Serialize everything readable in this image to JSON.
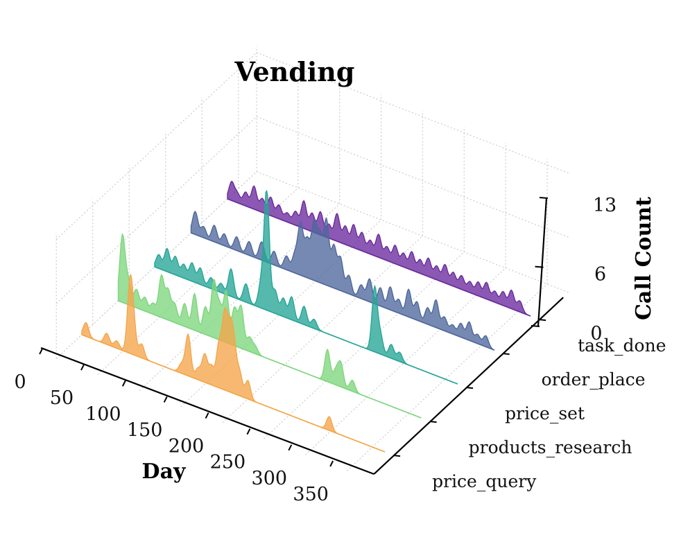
{
  "chart_data": {
    "type": "area",
    "title": "Vending",
    "xlabel": "Day",
    "ylabel": "",
    "zlabel": "Call Count",
    "xlim": [
      0,
      365
    ],
    "zlim": [
      0,
      13
    ],
    "x_ticks": [
      "0",
      "50",
      "100",
      "150",
      "200",
      "250",
      "300",
      "350"
    ],
    "z_ticks": [
      "0",
      "6",
      "13"
    ],
    "categories": [
      "price_query",
      "products_research",
      "price_set",
      "order_place",
      "task_done"
    ],
    "colors": {
      "price_query": "#f5a54a",
      "products_research": "#7ed67e",
      "price_set": "#27a597",
      "order_place": "#4e689c",
      "task_done": "#6a2a9d"
    },
    "series": [
      {
        "name": "price_query",
        "peaks": [
          [
            5,
            1.5
          ],
          [
            30,
            1.2
          ],
          [
            42,
            0.8
          ],
          [
            58,
            7.0
          ],
          [
            62,
            3.0
          ],
          [
            72,
            1.5
          ],
          [
            120,
            1.0
          ],
          [
            128,
            4.5
          ],
          [
            140,
            1.2
          ],
          [
            148,
            3.0
          ],
          [
            156,
            2.0
          ],
          [
            165,
            4.5
          ],
          [
            172,
            7.5
          ],
          [
            178,
            5.5
          ],
          [
            183,
            5.0
          ],
          [
            190,
            2.5
          ],
          [
            200,
            2.0
          ],
          [
            298,
            1.5
          ]
        ]
      },
      {
        "name": "products_research",
        "peaks": [
          [
            5,
            7.2
          ],
          [
            12,
            2.5
          ],
          [
            22,
            2.0
          ],
          [
            32,
            1.5
          ],
          [
            42,
            1.2
          ],
          [
            52,
            4.5
          ],
          [
            60,
            3.2
          ],
          [
            68,
            2.0
          ],
          [
            80,
            2.5
          ],
          [
            92,
            4.0
          ],
          [
            105,
            3.0
          ],
          [
            115,
            6.0
          ],
          [
            122,
            3.5
          ],
          [
            130,
            5.5
          ],
          [
            140,
            4.0
          ],
          [
            148,
            4.5
          ],
          [
            158,
            1.5
          ],
          [
            165,
            0.8
          ],
          [
            252,
            3.5
          ],
          [
            262,
            1.5
          ],
          [
            268,
            2.5
          ],
          [
            282,
            1.2
          ]
        ]
      },
      {
        "name": "price_set",
        "peaks": [
          [
            5,
            1.5
          ],
          [
            15,
            2.5
          ],
          [
            25,
            2.0
          ],
          [
            35,
            1.5
          ],
          [
            45,
            2.0
          ],
          [
            55,
            1.8
          ],
          [
            68,
            1.2
          ],
          [
            80,
            1.0
          ],
          [
            92,
            3.0
          ],
          [
            110,
            2.0
          ],
          [
            128,
            2.5
          ],
          [
            135,
            13.0
          ],
          [
            145,
            2.5
          ],
          [
            155,
            2.0
          ],
          [
            165,
            2.5
          ],
          [
            180,
            2.0
          ],
          [
            192,
            1.0
          ],
          [
            265,
            7.0
          ],
          [
            272,
            2.0
          ],
          [
            285,
            1.5
          ],
          [
            295,
            1.0
          ]
        ]
      },
      {
        "name": "order_place",
        "peaks": [
          [
            5,
            2.5
          ],
          [
            15,
            1.2
          ],
          [
            28,
            1.8
          ],
          [
            40,
            1.3
          ],
          [
            55,
            1.5
          ],
          [
            70,
            1.5
          ],
          [
            85,
            2.0
          ],
          [
            100,
            1.5
          ],
          [
            115,
            1.5
          ],
          [
            125,
            2.0
          ],
          [
            132,
            5.5
          ],
          [
            140,
            4.0
          ],
          [
            148,
            6.0
          ],
          [
            155,
            5.0
          ],
          [
            163,
            7.0
          ],
          [
            172,
            4.5
          ],
          [
            180,
            3.5
          ],
          [
            190,
            2.0
          ],
          [
            205,
            1.5
          ],
          [
            215,
            2.5
          ],
          [
            228,
            2.0
          ],
          [
            240,
            2.5
          ],
          [
            250,
            1.5
          ],
          [
            262,
            3.0
          ],
          [
            272,
            2.0
          ],
          [
            285,
            1.8
          ],
          [
            295,
            3.0
          ],
          [
            305,
            1.5
          ],
          [
            315,
            1.0
          ],
          [
            325,
            1.5
          ],
          [
            335,
            2.0
          ],
          [
            345,
            1.0
          ],
          [
            355,
            1.2
          ]
        ]
      },
      {
        "name": "task_done",
        "peaks": [
          [
            5,
            2.0
          ],
          [
            12,
            1.0
          ],
          [
            22,
            1.5
          ],
          [
            32,
            2.5
          ],
          [
            42,
            1.5
          ],
          [
            52,
            2.0
          ],
          [
            62,
            1.5
          ],
          [
            72,
            1.0
          ],
          [
            82,
            1.5
          ],
          [
            92,
            3.0
          ],
          [
            102,
            2.0
          ],
          [
            112,
            2.5
          ],
          [
            122,
            1.5
          ],
          [
            132,
            3.0
          ],
          [
            142,
            2.0
          ],
          [
            152,
            2.5
          ],
          [
            162,
            2.0
          ],
          [
            172,
            1.5
          ],
          [
            182,
            2.5
          ],
          [
            192,
            1.5
          ],
          [
            202,
            2.0
          ],
          [
            212,
            1.5
          ],
          [
            222,
            2.0
          ],
          [
            232,
            1.5
          ],
          [
            242,
            2.0
          ],
          [
            252,
            1.5
          ],
          [
            262,
            2.0
          ],
          [
            272,
            1.5
          ],
          [
            282,
            1.5
          ],
          [
            292,
            1.2
          ],
          [
            302,
            1.5
          ],
          [
            312,
            1.8
          ],
          [
            322,
            1.2
          ],
          [
            332,
            1.5
          ],
          [
            342,
            2.0
          ],
          [
            352,
            1.2
          ]
        ]
      }
    ],
    "grid": true
  }
}
